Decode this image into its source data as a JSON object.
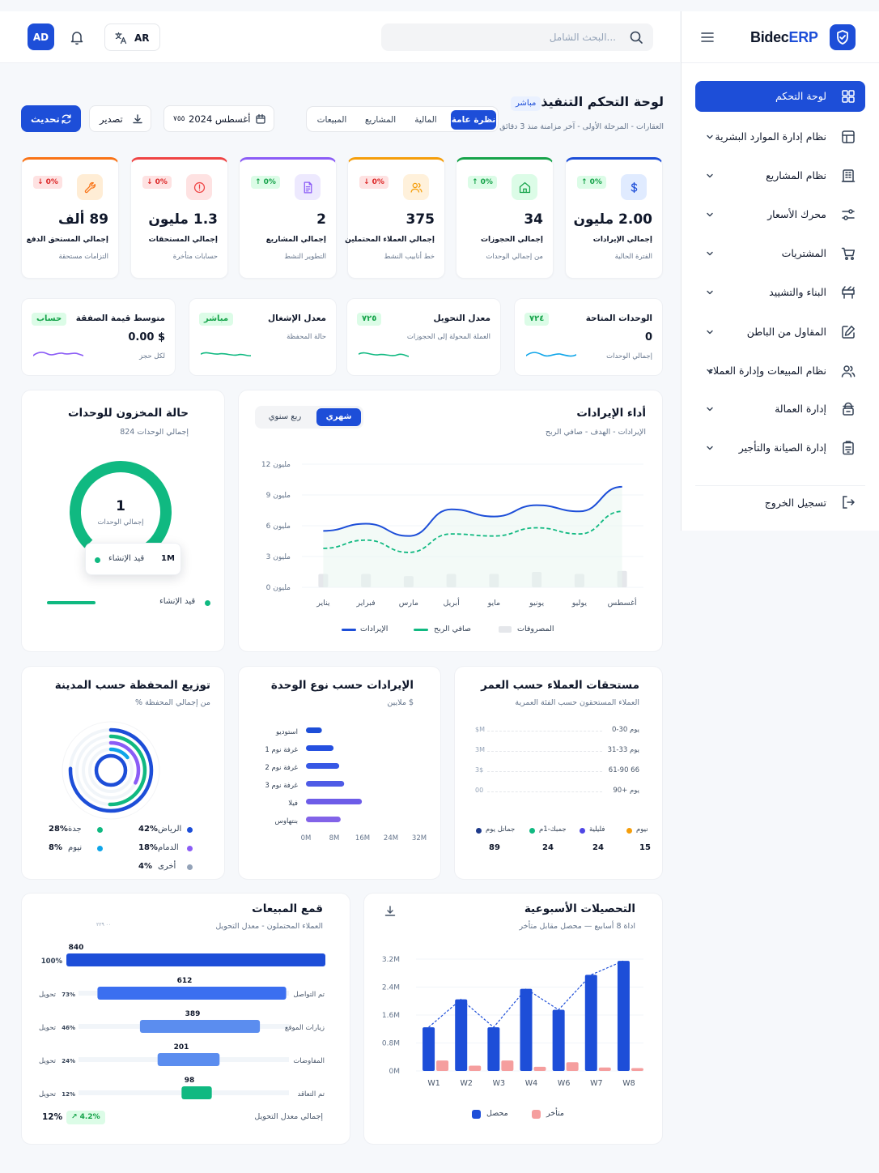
{
  "brand": {
    "name_a": "Bidec",
    "name_b": "ERP"
  },
  "sidebar": {
    "items": [
      {
        "label": "لوحة التحكم",
        "icon": "grid-icon",
        "active": true
      },
      {
        "label": "نظام إدارة الموارد البشرية",
        "icon": "layout-icon"
      },
      {
        "label": "نظام المشاريع",
        "icon": "building-icon"
      },
      {
        "label": "محرك الأسعار",
        "icon": "sliders-icon"
      },
      {
        "label": "المشتريات",
        "icon": "cart-icon"
      },
      {
        "label": "البناء والتشييد",
        "icon": "construction-icon"
      },
      {
        "label": "المقاول من الباطن",
        "icon": "edit-icon"
      },
      {
        "label": "نظام المبيعات وإدارة العملاء",
        "icon": "users-icon"
      },
      {
        "label": "إدارة العمالة",
        "icon": "worker-icon"
      },
      {
        "label": "إدارة الصيانة والتأجير",
        "icon": "clipboard-icon"
      }
    ],
    "logout": "تسجيل الخروج"
  },
  "topbar": {
    "avatar": "AD",
    "lang": "AR",
    "search_placeholder": "البحث الشامل..."
  },
  "header": {
    "title": "لوحة التحكم التنفيذية",
    "live": "مباشر",
    "subtitle": "العقارات - المرحلة الأولى - آخر مزامنة منذ 3 دقائق",
    "tabs": [
      "نظرة عامة",
      "المالية",
      "المشاريع",
      "المبيعات"
    ],
    "refresh": "تحديث",
    "export": "تصدير",
    "date": "أغسطس 2024",
    "date_suffix": "٧٥٥"
  },
  "kpis": [
    {
      "value": "2.00 مليون",
      "label": "إجمالي الإيرادات",
      "sub": "الفترة الحالية",
      "badge": "↑ 0%",
      "dir": "up",
      "color": "#1d4ed8",
      "bg": "#e0ebff",
      "icon": "dollar-icon"
    },
    {
      "value": "34",
      "label": "إجمالي الحجوزات",
      "sub": "من إجمالي الوحدات",
      "badge": "↑ 0%",
      "dir": "up",
      "color": "#16a34a",
      "bg": "#dcfce7",
      "icon": "home-icon"
    },
    {
      "value": "375",
      "label": "إجمالي العملاء المحتملين",
      "sub": "خط أنابيب النشط",
      "badge": "↓ 0%",
      "dir": "down",
      "color": "#f59e0b",
      "bg": "#fff1db",
      "icon": "people-icon"
    },
    {
      "value": "2",
      "label": "إجمالي المشاريع",
      "sub": "التطوير النشط",
      "badge": "↑ 0%",
      "dir": "up",
      "color": "#8b5cf6",
      "bg": "#ede9fe",
      "icon": "document-icon"
    },
    {
      "value": "1.3 مليون",
      "label": "إجمالي المستحقات",
      "sub": "حسابات متأخرة",
      "badge": "↓ 0%",
      "dir": "down",
      "color": "#ef4444",
      "bg": "#fee2e2",
      "icon": "alert-icon"
    },
    {
      "value": "89 ألف",
      "label": "إجمالي المستحق الدفع",
      "sub": "التزامات مستحقة",
      "badge": "↓ 0%",
      "dir": "down",
      "color": "#f97316",
      "bg": "#ffedd5",
      "icon": "wrench-icon"
    }
  ],
  "minis": [
    {
      "title": "الوحدات المتاحة",
      "value": "0",
      "sub": "إجمالي الوحدات",
      "badge": "٧٢٤",
      "color": "#0ea5e9"
    },
    {
      "title": "معدل التحويل",
      "value": "",
      "sub": "العملة المحولة إلى الحجوزات",
      "badge": "٧٢٥",
      "color": "#10b981"
    },
    {
      "title": "معدل الإشغال",
      "value": "",
      "sub": "حالة المحفظة",
      "badge": "مباشر",
      "color": "#10b981"
    },
    {
      "title": "متوسط قيمة الصفقة",
      "value": "0.00 $",
      "sub": "لكل حجز",
      "badge": "حساب",
      "color": "#8b5cf6"
    }
  ],
  "revenue": {
    "title": "أداء الإيرادات",
    "subtitle": "الإيرادات - الهدف - صافي الربح",
    "toggle": [
      "شهري",
      "ربع سنوي"
    ],
    "legend": [
      "الإيرادات",
      "صافي الربح",
      "المصروفات"
    ],
    "colors": {
      "revenue": "#1d4ed8",
      "profit": "#10b981",
      "expenses": "#e5e7eb"
    }
  },
  "inventory": {
    "title": "حالة المخزون للوحدات",
    "subtitle": "824 إجمالي الوحدات",
    "center_value": "1",
    "center_label": "إجمالي الوحدات",
    "tooltip_value": "1M",
    "tooltip_label": "قيد الإنشاء",
    "legend_label": "قيد الإنشاء"
  },
  "aging": {
    "title": "مستحقات العملاء حسب العمر",
    "subtitle": "العملاء المستحقون حسب الفئة العمرية",
    "rows": [
      {
        "label": "0-30 يوم",
        "value": "$M"
      },
      {
        "label": "31-33 يوم",
        "value": "3M"
      },
      {
        "label": "61-90 66",
        "value": "3$"
      },
      {
        "label": "90+ يوم",
        "value": "00"
      }
    ],
    "legend": [
      {
        "label": "نيوم",
        "value": "15",
        "color": "#f59e0b"
      },
      {
        "label": "فليلية",
        "value": "24",
        "color": "#4f46e5"
      },
      {
        "label": "جمبك-1م",
        "value": "24",
        "color": "#10b981"
      },
      {
        "label": "جماتل يوم",
        "value": "89",
        "color": "#1e3a8a"
      }
    ]
  },
  "unit_revenue": {
    "title": "الإيرادات حسب نوع الوحدة",
    "subtitle": "ملايين $",
    "x_ticks": [
      "0M",
      "8M",
      "16M",
      "24M",
      "32M"
    ]
  },
  "city": {
    "title": "توزيع المحفظة حسب المدينة",
    "subtitle": "% من إجمالي المحفظة",
    "items": [
      {
        "label": "الرياض",
        "pct": "42%",
        "color": "#1d4ed8"
      },
      {
        "label": "جدة",
        "pct": "28%",
        "color": "#10b981"
      },
      {
        "label": "الدمام",
        "pct": "18%",
        "color": "#8b5cf6"
      },
      {
        "label": "نيوم",
        "pct": "8%",
        "color": "#0ea5e9"
      },
      {
        "label": "أخرى",
        "pct": "4%",
        "color": "#94a3b8"
      }
    ]
  },
  "funnel": {
    "title": "قمع المبيعات",
    "subtitle": "العملاء المحتملون - معدل التحويل",
    "hint": "٠٠ ٢٢٩",
    "conv_word": "تحويل",
    "footer_label": "إجمالي معدل التحويل",
    "footer_value": "12%",
    "footer_badge": "↗ 4.2%"
  },
  "collections": {
    "title": "التحصيلات الأسبوعية",
    "subtitle": "اداة 8 أسابيع — محصل مقابل متأخر",
    "legend": [
      "محصل",
      "متأخر"
    ],
    "colors": {
      "collected": "#1d4ed8",
      "late": "#f59e9e"
    }
  },
  "chart_data": [
    {
      "type": "line",
      "title": "أداء الإيرادات",
      "x": [
        "يناير",
        "فبراير",
        "مارس",
        "أبريل",
        "مايو",
        "يونيو",
        "يوليو",
        "أغسطس"
      ],
      "y_ticks": [
        "0 مليون",
        "3 مليون",
        "6 مليون",
        "9 مليون",
        "12 مليون"
      ],
      "ylim": [
        0,
        12
      ],
      "series": [
        {
          "name": "الإيرادات",
          "values": [
            5.5,
            6.2,
            5.0,
            7.6,
            6.9,
            8.0,
            7.4,
            9.8
          ]
        },
        {
          "name": "صافي الربح",
          "values": [
            3.8,
            4.6,
            3.4,
            5.2,
            5.0,
            5.8,
            5.2,
            7.4
          ]
        },
        {
          "name": "المصروفات",
          "values": [
            1.3,
            1.3,
            1.1,
            1.3,
            1.3,
            1.5,
            1.3,
            1.6
          ]
        }
      ]
    },
    {
      "type": "bar",
      "title": "الإيرادات حسب نوع الوحدة",
      "orientation": "horizontal",
      "categories": [
        "استوديو",
        "غرفة نوم 1",
        "غرفة نوم 2",
        "غرفة نوم 3",
        "فيلا",
        "بنتهاوس"
      ],
      "values": [
        4.5,
        7.8,
        9.4,
        10.8,
        15.8,
        9.8
      ],
      "xlim": [
        0,
        32
      ]
    },
    {
      "type": "bar",
      "title": "قمع المبيعات",
      "orientation": "horizontal",
      "categories": [
        "",
        "تم التواصل",
        "زيارات الموقع",
        "المفاوضات",
        "تم التعاقد"
      ],
      "values": [
        840,
        612,
        389,
        201,
        98
      ],
      "percent": [
        "100%",
        "73%",
        "46%",
        "24%",
        "12%"
      ],
      "colors": [
        "#1d4ed8",
        "#3b6ff0",
        "#5b8def",
        "#5b8def",
        "#10b981"
      ]
    },
    {
      "type": "bar",
      "title": "التحصيلات الأسبوعية",
      "categories": [
        "W1",
        "W2",
        "W3",
        "W4",
        "W6",
        "W7",
        "W8"
      ],
      "y_ticks": [
        "0M",
        "0.8M",
        "1.6M",
        "2.4M",
        "3.2M"
      ],
      "ylim": [
        0,
        3.2
      ],
      "series": [
        {
          "name": "محصل",
          "values": [
            1.25,
            2.05,
            1.25,
            2.35,
            1.75,
            2.75,
            3.15
          ]
        },
        {
          "name": "متأخر",
          "values": [
            0.3,
            0.15,
            0.3,
            0.12,
            0.25,
            0.1,
            0.08
          ]
        }
      ]
    }
  ]
}
